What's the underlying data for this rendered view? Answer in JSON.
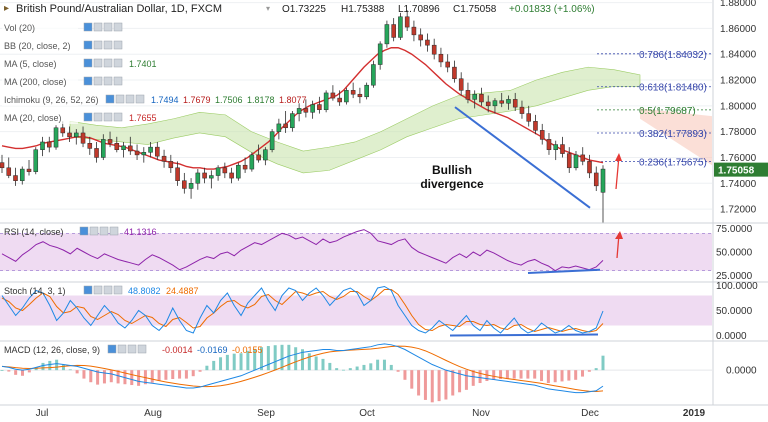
{
  "header": {
    "symbol": "British Pound/Australian Dollar, 1D, FXCM",
    "open": "O1.73225",
    "high": "H1.75388",
    "low": "L1.70896",
    "close": "C1.75058",
    "change": "+0.01833 (+1.06%)"
  },
  "indicators": [
    {
      "label": "Vol (20)",
      "values": []
    },
    {
      "label": "BB (20, close, 2)",
      "values": []
    },
    {
      "label": "MA (5, close)",
      "values": [
        {
          "v": "1.7401",
          "color": "#2e7d32"
        }
      ]
    },
    {
      "label": "MA (200, close)",
      "values": []
    },
    {
      "label": "Ichimoku (9, 26, 52, 26)",
      "values": [
        {
          "v": "1.7494",
          "color": "#1565c0"
        },
        {
          "v": "1.7679",
          "color": "#b71c1c"
        },
        {
          "v": "1.7506",
          "color": "#2e7d32"
        },
        {
          "v": "1.8178",
          "color": "#2e7d32"
        },
        {
          "v": "1.8077",
          "color": "#b71c1c"
        }
      ]
    },
    {
      "label": "MA (20, close)",
      "values": [
        {
          "v": "1.7655",
          "color": "#c62828"
        }
      ]
    }
  ],
  "price_axis": {
    "ticks": [
      "1.88000",
      "1.86000",
      "1.84000",
      "1.82000",
      "1.80000",
      "1.78000",
      "1.76000",
      "1.74000",
      "1.72000"
    ],
    "last_price": "1.75058"
  },
  "fib_levels": [
    {
      "label": "0.786(1.84032)",
      "value": 1.84032,
      "color": "#3949ab"
    },
    {
      "label": "0.618(1.81480)",
      "value": 1.8148,
      "color": "#3949ab"
    },
    {
      "label": "0.5(1.79687)",
      "value": 1.79687,
      "color": "#2e7d32"
    },
    {
      "label": "0.382(1.77893)",
      "value": 1.77893,
      "color": "#3949ab"
    },
    {
      "label": "0.236(1.75675)",
      "value": 1.75675,
      "color": "#3949ab"
    }
  ],
  "annotation": {
    "line1": "Bullish",
    "line2": "divergence"
  },
  "rsi": {
    "label": "RSI (14, close)",
    "value": "41.1316",
    "ticks": [
      "75.0000",
      "50.0000",
      "25.0000"
    ]
  },
  "stoch": {
    "label": "Stoch (14, 3, 1)",
    "k": "48.8082",
    "d": "24.4887",
    "ticks": [
      "100.0000",
      "50.0000",
      "0.0000"
    ]
  },
  "macd": {
    "label": "MACD (12, 26, close, 9)",
    "hist": "-0.0014",
    "macd": "-0.0169",
    "signal": "-0.0155",
    "ticks": [
      "0.0000"
    ]
  },
  "time_axis": [
    "Jul",
    "Aug",
    "Sep",
    "Oct",
    "Nov",
    "Dec",
    "2019"
  ],
  "colors": {
    "up": "#26a65b",
    "down": "#c0392b",
    "ma20": "#d32f2f",
    "cloud": "#c5e1a5",
    "rsi_band": "#e1bee7",
    "rsi_line": "#8e24aa",
    "stoch_k": "#1e88e5",
    "stoch_d": "#ef6c00",
    "macd": "#1e88e5",
    "signal": "#ef6c00",
    "trend": "#3b6fd4",
    "arrow": "#e53935"
  },
  "chart_data": {
    "type": "candlestick",
    "y_range": [
      1.71,
      1.882
    ],
    "x_ticks": [
      "Jul",
      "Aug",
      "Sep",
      "Oct",
      "Nov",
      "Dec",
      "2019"
    ],
    "candles_ohlc": [
      [
        1.756,
        1.762,
        1.748,
        1.752
      ],
      [
        1.752,
        1.76,
        1.744,
        1.746
      ],
      [
        1.746,
        1.752,
        1.738,
        1.742
      ],
      [
        1.742,
        1.753,
        1.739,
        1.751
      ],
      [
        1.751,
        1.758,
        1.746,
        1.749
      ],
      [
        1.749,
        1.768,
        1.747,
        1.766
      ],
      [
        1.766,
        1.776,
        1.761,
        1.772
      ],
      [
        1.772,
        1.776,
        1.764,
        1.768
      ],
      [
        1.768,
        1.785,
        1.766,
        1.783
      ],
      [
        1.783,
        1.788,
        1.776,
        1.779
      ],
      [
        1.779,
        1.784,
        1.772,
        1.776
      ],
      [
        1.776,
        1.782,
        1.77,
        1.779
      ],
      [
        1.779,
        1.784,
        1.768,
        1.771
      ],
      [
        1.771,
        1.776,
        1.762,
        1.767
      ],
      [
        1.767,
        1.772,
        1.756,
        1.76
      ],
      [
        1.76,
        1.778,
        1.758,
        1.774
      ],
      [
        1.774,
        1.78,
        1.768,
        1.771
      ],
      [
        1.771,
        1.776,
        1.764,
        1.766
      ],
      [
        1.766,
        1.772,
        1.76,
        1.769
      ],
      [
        1.769,
        1.776,
        1.762,
        1.765
      ],
      [
        1.765,
        1.77,
        1.758,
        1.762
      ],
      [
        1.762,
        1.768,
        1.756,
        1.764
      ],
      [
        1.764,
        1.772,
        1.76,
        1.768
      ],
      [
        1.768,
        1.772,
        1.758,
        1.761
      ],
      [
        1.761,
        1.766,
        1.752,
        1.757
      ],
      [
        1.757,
        1.762,
        1.748,
        1.752
      ],
      [
        1.752,
        1.757,
        1.738,
        1.742
      ],
      [
        1.742,
        1.748,
        1.732,
        1.736
      ],
      [
        1.736,
        1.744,
        1.728,
        1.74
      ],
      [
        1.74,
        1.751,
        1.735,
        1.748
      ],
      [
        1.748,
        1.752,
        1.74,
        1.744
      ],
      [
        1.744,
        1.75,
        1.736,
        1.746
      ],
      [
        1.746,
        1.754,
        1.742,
        1.752
      ],
      [
        1.752,
        1.756,
        1.744,
        1.748
      ],
      [
        1.748,
        1.752,
        1.74,
        1.744
      ],
      [
        1.744,
        1.756,
        1.742,
        1.754
      ],
      [
        1.754,
        1.76,
        1.748,
        1.751
      ],
      [
        1.751,
        1.764,
        1.749,
        1.762
      ],
      [
        1.762,
        1.77,
        1.756,
        1.758
      ],
      [
        1.758,
        1.768,
        1.754,
        1.766
      ],
      [
        1.766,
        1.782,
        1.764,
        1.78
      ],
      [
        1.78,
        1.79,
        1.774,
        1.786
      ],
      [
        1.786,
        1.796,
        1.779,
        1.783
      ],
      [
        1.783,
        1.796,
        1.78,
        1.794
      ],
      [
        1.794,
        1.802,
        1.788,
        1.798
      ],
      [
        1.798,
        1.805,
        1.791,
        1.795
      ],
      [
        1.795,
        1.804,
        1.79,
        1.801
      ],
      [
        1.801,
        1.807,
        1.794,
        1.797
      ],
      [
        1.797,
        1.812,
        1.795,
        1.81
      ],
      [
        1.81,
        1.816,
        1.804,
        1.806
      ],
      [
        1.806,
        1.812,
        1.8,
        1.803
      ],
      [
        1.803,
        1.814,
        1.801,
        1.812
      ],
      [
        1.812,
        1.818,
        1.806,
        1.809
      ],
      [
        1.809,
        1.814,
        1.802,
        1.807
      ],
      [
        1.807,
        1.818,
        1.805,
        1.816
      ],
      [
        1.816,
        1.835,
        1.814,
        1.832
      ],
      [
        1.832,
        1.85,
        1.828,
        1.848
      ],
      [
        1.848,
        1.866,
        1.845,
        1.863
      ],
      [
        1.863,
        1.868,
        1.85,
        1.853
      ],
      [
        1.853,
        1.872,
        1.851,
        1.869
      ],
      [
        1.869,
        1.874,
        1.858,
        1.861
      ],
      [
        1.861,
        1.866,
        1.85,
        1.855
      ],
      [
        1.855,
        1.86,
        1.846,
        1.851
      ],
      [
        1.851,
        1.856,
        1.842,
        1.847
      ],
      [
        1.847,
        1.852,
        1.836,
        1.84
      ],
      [
        1.84,
        1.845,
        1.83,
        1.834
      ],
      [
        1.834,
        1.84,
        1.826,
        1.83
      ],
      [
        1.83,
        1.835,
        1.818,
        1.821
      ],
      [
        1.821,
        1.826,
        1.808,
        1.812
      ],
      [
        1.812,
        1.818,
        1.802,
        1.805
      ],
      [
        1.805,
        1.812,
        1.798,
        1.809
      ],
      [
        1.809,
        1.814,
        1.8,
        1.803
      ],
      [
        1.803,
        1.808,
        1.795,
        1.8
      ],
      [
        1.8,
        1.806,
        1.794,
        1.804
      ],
      [
        1.804,
        1.81,
        1.799,
        1.802
      ],
      [
        1.802,
        1.808,
        1.797,
        1.805
      ],
      [
        1.805,
        1.81,
        1.796,
        1.799
      ],
      [
        1.799,
        1.804,
        1.79,
        1.794
      ],
      [
        1.794,
        1.8,
        1.784,
        1.788
      ],
      [
        1.788,
        1.793,
        1.778,
        1.781
      ],
      [
        1.781,
        1.786,
        1.77,
        1.774
      ],
      [
        1.774,
        1.779,
        1.762,
        1.766
      ],
      [
        1.766,
        1.773,
        1.758,
        1.77
      ],
      [
        1.77,
        1.776,
        1.76,
        1.763
      ],
      [
        1.763,
        1.768,
        1.748,
        1.752
      ],
      [
        1.752,
        1.765,
        1.75,
        1.762
      ],
      [
        1.762,
        1.768,
        1.754,
        1.757
      ],
      [
        1.757,
        1.762,
        1.744,
        1.748
      ],
      [
        1.748,
        1.753,
        1.734,
        1.738
      ],
      [
        1.733,
        1.754,
        1.709,
        1.751
      ]
    ],
    "ma20_over_candles": "red moving average line following price",
    "fib_retracement": [
      1.84032,
      1.8148,
      1.79687,
      1.77893,
      1.75675
    ],
    "rsi_last": 41.1316,
    "stoch_last": {
      "k": 48.8082,
      "d": 24.4887
    },
    "macd_last": {
      "hist": -0.0014,
      "macd": -0.0169,
      "signal": -0.0155
    }
  }
}
